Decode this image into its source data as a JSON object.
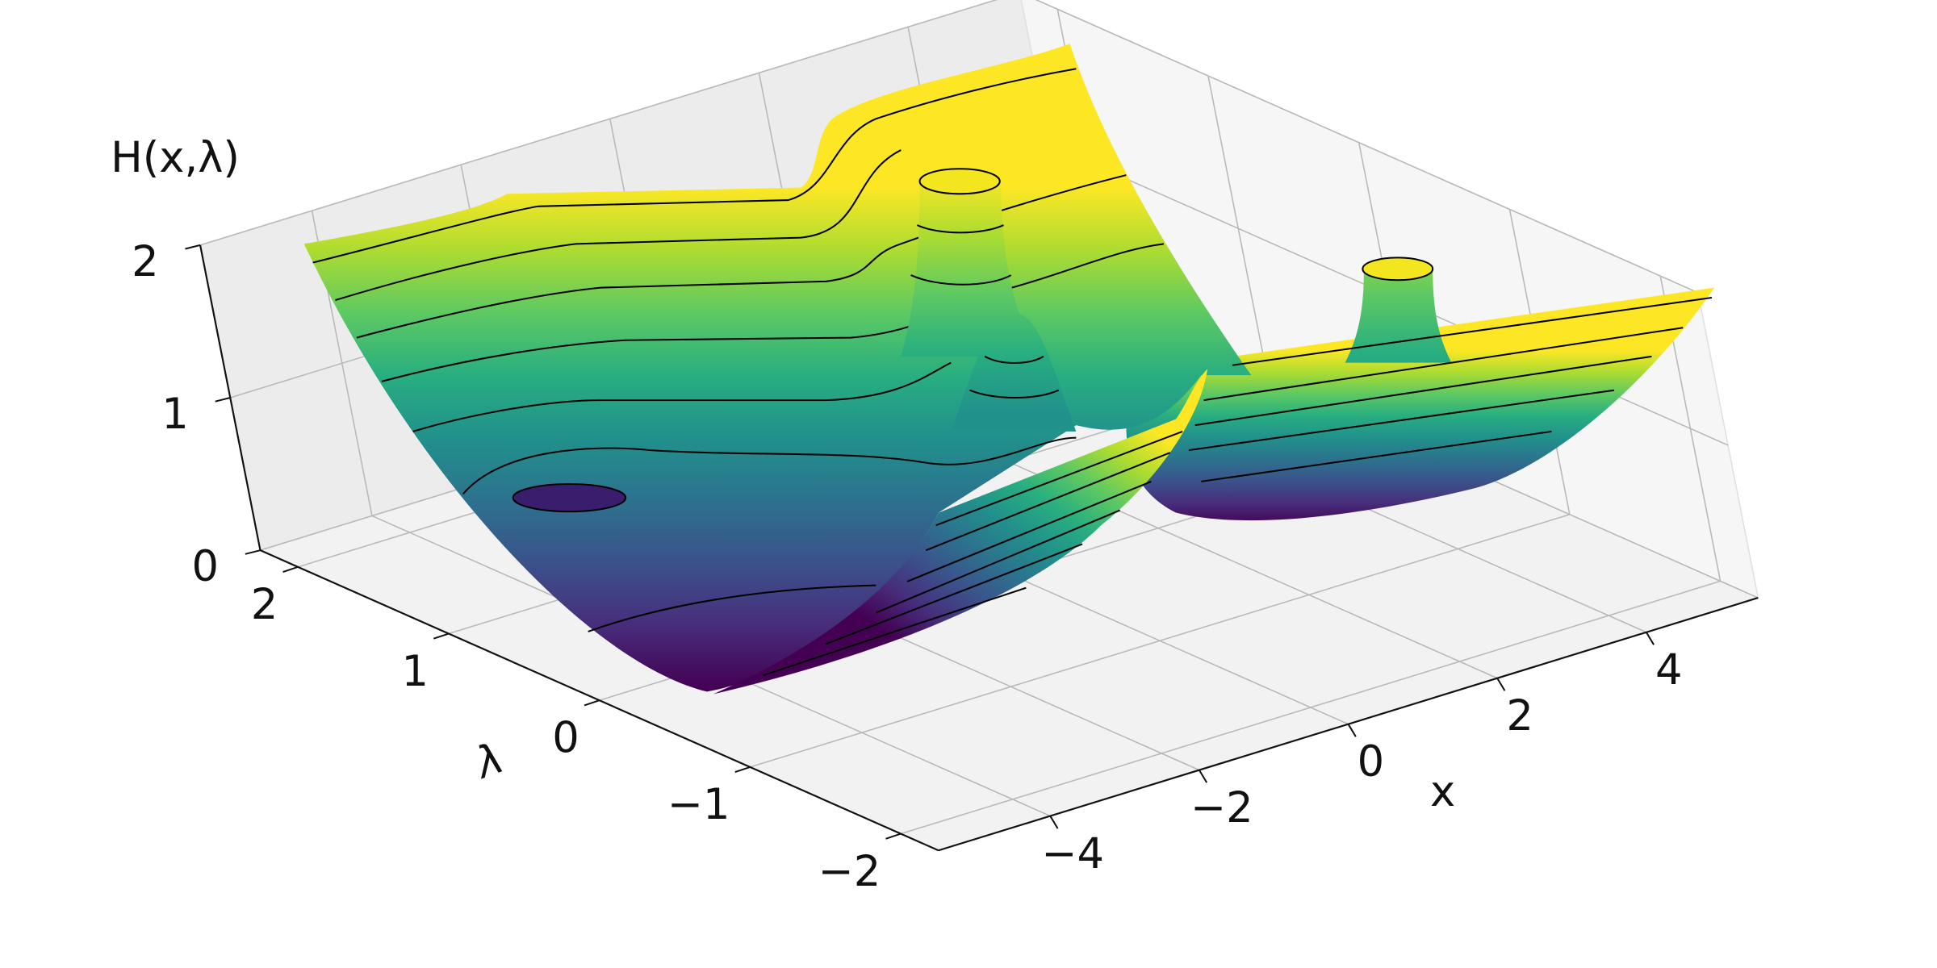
{
  "chart_data": {
    "type": "surface3d",
    "zlabel": "H(x,λ)",
    "xlabel": "x",
    "ylabel": "λ",
    "xlim": [
      -5.5,
      5.5
    ],
    "ylim": [
      -2.25,
      2.25
    ],
    "zlim": [
      0,
      2
    ],
    "xticks": [
      {
        "value": -4,
        "label": "−4"
      },
      {
        "value": -2,
        "label": "−2"
      },
      0,
      2,
      4
    ],
    "yticks": [
      {
        "value": -2,
        "label": "−2"
      },
      {
        "value": -1,
        "label": "−1"
      },
      0,
      1,
      2
    ],
    "zticks": [
      0,
      1,
      2
    ],
    "colormap": "viridis",
    "grid": true
  }
}
